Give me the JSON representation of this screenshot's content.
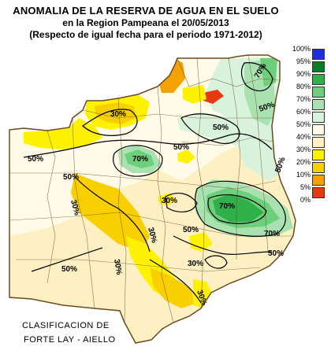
{
  "title": {
    "line1": "ANOMALIA DE LA RESERVA DE AGUA EN EL SUELO",
    "line2": "en la Region Pampeana el    20/05/2013",
    "line3": "(Respecto de igual fecha para el periodo 1971-2012)"
  },
  "legend": {
    "items": [
      {
        "label": "100%",
        "color": "#1f2fe0"
      },
      {
        "label": "95%",
        "color": "#0a7d2a"
      },
      {
        "label": "90%",
        "color": "#2fb04a"
      },
      {
        "label": "80%",
        "color": "#6dcf7c"
      },
      {
        "label": "70%",
        "color": "#a9e2b0"
      },
      {
        "label": "60%",
        "color": "#d9f2dc"
      },
      {
        "label": "50%",
        "color": "#fffbe8"
      },
      {
        "label": "40%",
        "color": "#fdf1c4"
      },
      {
        "label": "30%",
        "color": "#fff200"
      },
      {
        "label": "20%",
        "color": "#f8d000"
      },
      {
        "label": "10%",
        "color": "#f5a200"
      },
      {
        "label": "5%",
        "color": "#e53a10"
      },
      {
        "label": "0%",
        "color": "#ffffff"
      }
    ]
  },
  "contour_labels": [
    "30%",
    "50%",
    "70%",
    "50%",
    "50%",
    "50%",
    "30%",
    "70%",
    "30%",
    "50%",
    "50%",
    "30%",
    "50%",
    "30%",
    "70%",
    "50%",
    "50%",
    "70%",
    "30%",
    "30%"
  ],
  "credit": {
    "line1": "CLASIFICACION DE",
    "line2": "FORTE LAY - AIELLO"
  },
  "colors": {
    "border": "#6b4a1f",
    "contour": "#000000"
  }
}
